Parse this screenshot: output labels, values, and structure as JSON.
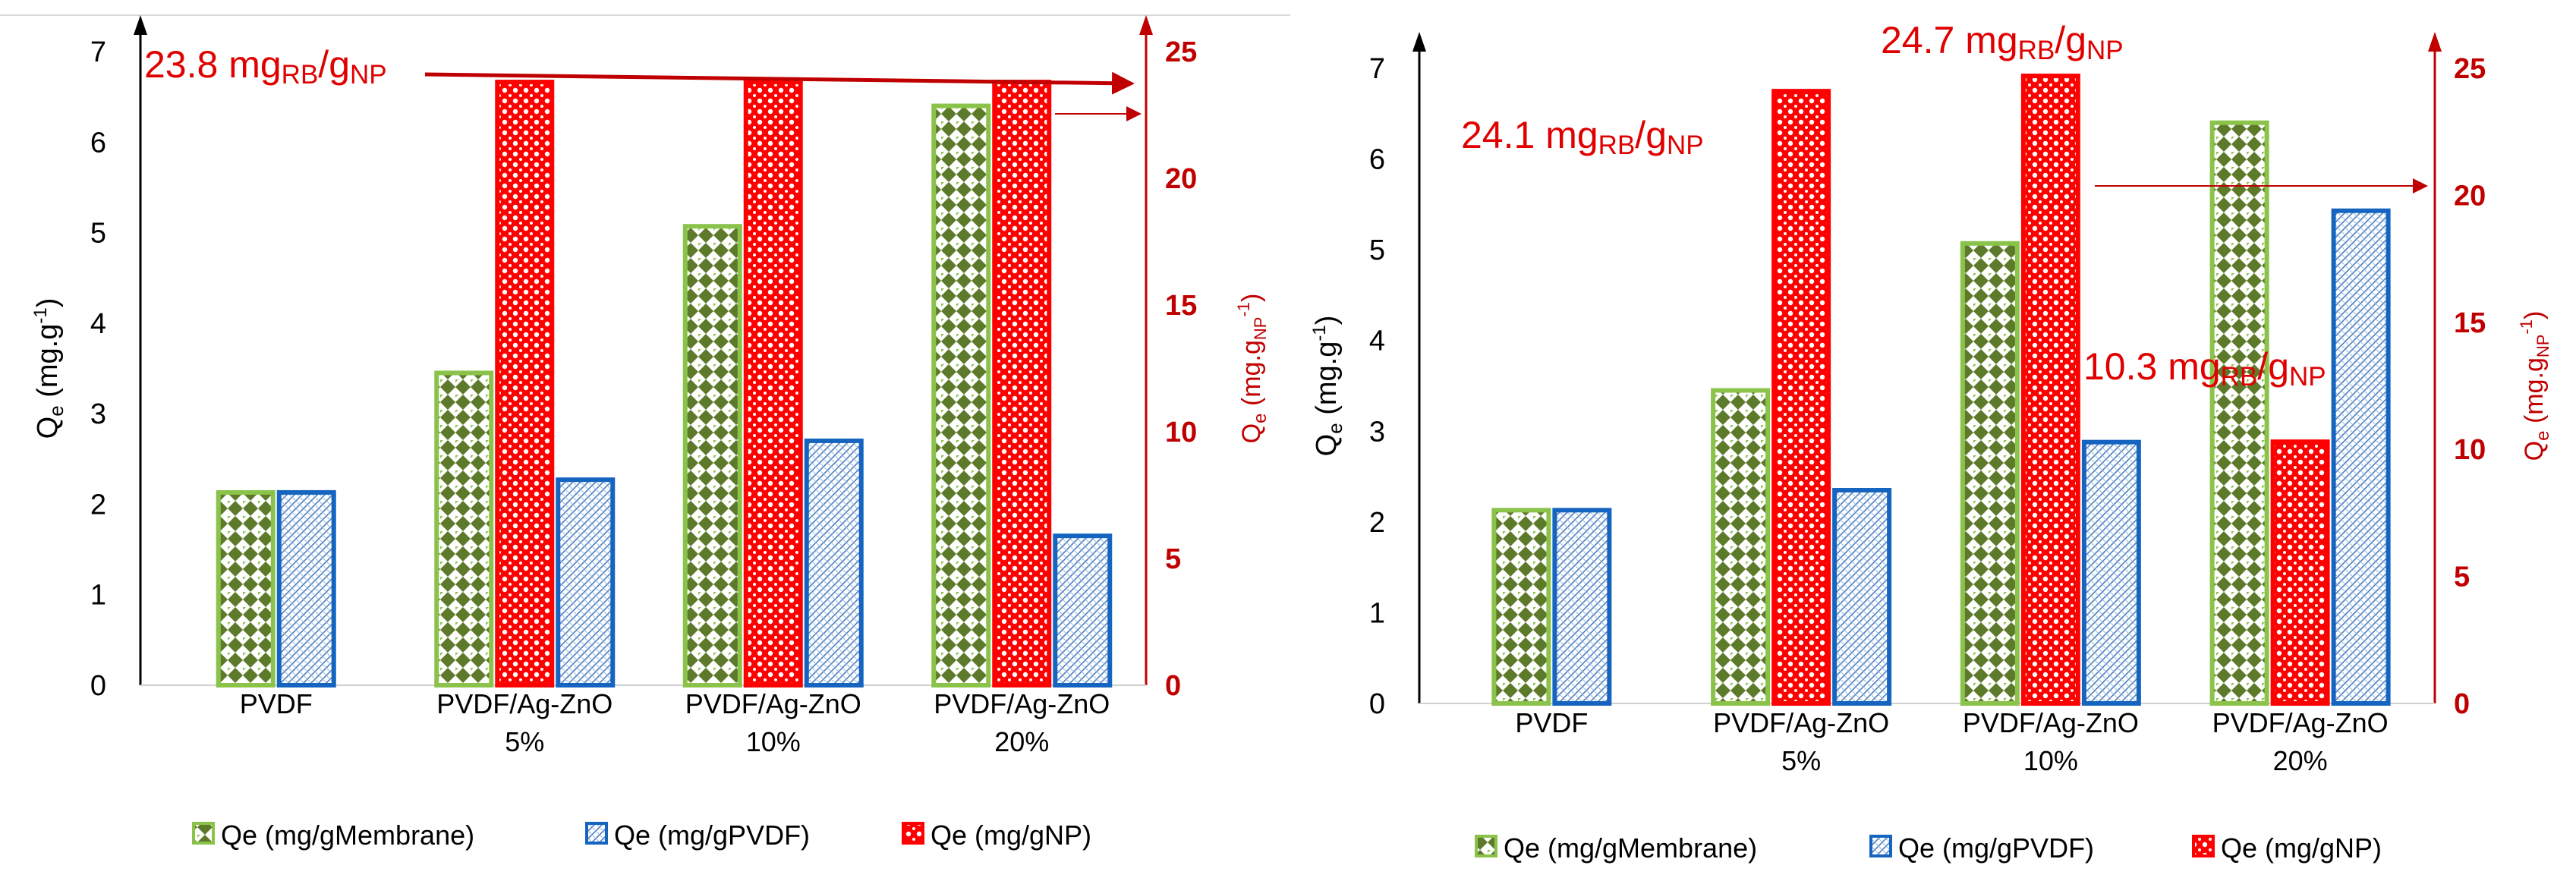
{
  "colors": {
    "membrane": "#8bc34a",
    "membrane_dot": "#5d7a2a",
    "pvdf": "#1565c0",
    "np": "#ff0000",
    "axis_right": "#c00000",
    "annotation": "#e00000",
    "grid_line": "#d9d9d9",
    "text": "#000000"
  },
  "chart_data": [
    {
      "type": "bar",
      "panel": "left",
      "categories": [
        "PVDF",
        "PVDF/Ag-ZnO\n5%",
        "PVDF/Ag-ZnO\n10%",
        "PVDF/Ag-ZnO\n20%"
      ],
      "y_left": {
        "label_main": "Q",
        "label_sub": "e",
        "label_rest": " (mg.g",
        "label_sup": "-1",
        "label_end": ")",
        "min": 0,
        "max": 7,
        "ticks": [
          0,
          1,
          2,
          3,
          4,
          5,
          6,
          7
        ]
      },
      "y_right": {
        "label_main": "Q",
        "label_sub": "e",
        "label_rest": " (mg.g",
        "label_sub2": "NP",
        "label_sup": "-1",
        "label_end": ")",
        "min": 0,
        "max": 25,
        "ticks": [
          0,
          5,
          10,
          15,
          20,
          25
        ]
      },
      "series": [
        {
          "name": "Qe (mg/gMembrane)",
          "axis": "left",
          "values": [
            2.13,
            3.45,
            5.07,
            6.4
          ]
        },
        {
          "name": "Qe (mg/gPVDF)",
          "axis": "left",
          "values": [
            2.13,
            2.27,
            2.7,
            1.65
          ]
        },
        {
          "name": "Qe (mg/gNP)",
          "axis": "right",
          "values": [
            null,
            23.8,
            23.8,
            23.8
          ]
        }
      ],
      "annotations": [
        {
          "pre": "23.8 mg",
          "sub1": "RB",
          "mid": "/g",
          "sub2": "NP"
        }
      ],
      "legend": [
        "Qe (mg/gMembrane)",
        "Qe (mg/gPVDF)",
        "Qe (mg/gNP)"
      ]
    },
    {
      "type": "bar",
      "panel": "right",
      "categories": [
        "PVDF",
        "PVDF/Ag-ZnO\n5%",
        "PVDF/Ag-ZnO\n10%",
        "PVDF/Ag-ZnO\n20%"
      ],
      "y_left": {
        "label_main": "Q",
        "label_sub": "e",
        "label_rest": " (mg.g",
        "label_sup": "-1",
        "label_end": ")",
        "min": 0,
        "max": 7,
        "ticks": [
          0,
          1,
          2,
          3,
          4,
          5,
          6,
          7
        ]
      },
      "y_right": {
        "label_main": "Q",
        "label_sub": "e",
        "label_rest": " (mg.g",
        "label_sub2": "NP",
        "label_sup": "-1",
        "label_end": ")",
        "min": 0,
        "max": 25,
        "ticks": [
          0,
          5,
          10,
          15,
          20,
          25
        ]
      },
      "series": [
        {
          "name": "Qe (mg/gMembrane)",
          "axis": "left",
          "values": [
            2.13,
            3.45,
            5.07,
            6.4
          ]
        },
        {
          "name": "Qe (mg/gPVDF)",
          "axis": "left",
          "values": [
            2.13,
            2.35,
            2.88,
            5.43
          ]
        },
        {
          "name": "Qe (mg/gNP)",
          "axis": "right",
          "values": [
            null,
            24.1,
            24.7,
            10.3
          ]
        }
      ],
      "annotations": [
        {
          "pre": "24.1 mg",
          "sub1": "RB",
          "mid": "/g",
          "sub2": "NP"
        },
        {
          "pre": "24.7 mg",
          "sub1": "RB",
          "mid": "/g",
          "sub2": "NP"
        },
        {
          "pre": "10.3 mg",
          "sub1": "RB",
          "mid": "/g",
          "sub2": "NP"
        }
      ],
      "legend": [
        "Qe (mg/gMembrane)",
        "Qe (mg/gPVDF)",
        "Qe (mg/gNP)"
      ]
    }
  ]
}
